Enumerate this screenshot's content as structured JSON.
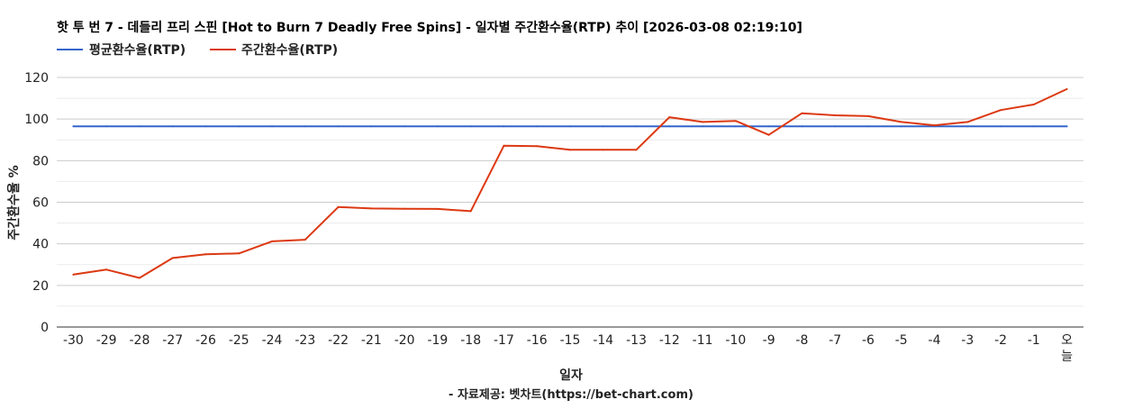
{
  "chart_data": {
    "type": "line",
    "title": "핫 투 번 7 - 데들리 프리 스핀 [Hot to Burn 7 Deadly Free Spins] - 일자별 주간환수율(RTP) 추이 [2026-03-08 02:19:10]",
    "xlabel": "일자",
    "ylabel": "주간환수율 %",
    "source": "- 자료제공: 벳차트(https://bet-chart.com)",
    "categories": [
      "-30",
      "-29",
      "-28",
      "-27",
      "-26",
      "-25",
      "-24",
      "-23",
      "-22",
      "-21",
      "-20",
      "-19",
      "-18",
      "-17",
      "-16",
      "-15",
      "-14",
      "-13",
      "-12",
      "-11",
      "-10",
      "-9",
      "-8",
      "-7",
      "-6",
      "-5",
      "-4",
      "-3",
      "-2",
      "-1",
      "오늘"
    ],
    "ylim": [
      0,
      120
    ],
    "yticks": [
      0,
      20,
      40,
      60,
      80,
      100,
      120
    ],
    "grid": true,
    "legend_position": "top-left",
    "series": [
      {
        "name": "평균환수율(RTP)",
        "color": "#3366cc",
        "values": [
          96.5,
          96.5,
          96.5,
          96.5,
          96.5,
          96.5,
          96.5,
          96.5,
          96.5,
          96.5,
          96.5,
          96.5,
          96.5,
          96.5,
          96.5,
          96.5,
          96.5,
          96.5,
          96.5,
          96.5,
          96.5,
          96.5,
          96.5,
          96.5,
          96.5,
          96.5,
          96.5,
          96.5,
          96.5,
          96.5,
          96.5
        ]
      },
      {
        "name": "주간환수율(RTP)",
        "color": "#dc3912",
        "values": [
          25.2,
          27.6,
          23.6,
          33.2,
          35,
          35.4,
          41.2,
          42,
          57.7,
          57,
          56.9,
          56.8,
          55.7,
          87.2,
          87,
          85.2,
          85.2,
          85.2,
          100.9,
          98.6,
          99.1,
          92.4,
          102.8,
          101.8,
          101.4,
          98.6,
          97,
          98.6,
          104.3,
          107,
          114.4
        ]
      }
    ]
  }
}
